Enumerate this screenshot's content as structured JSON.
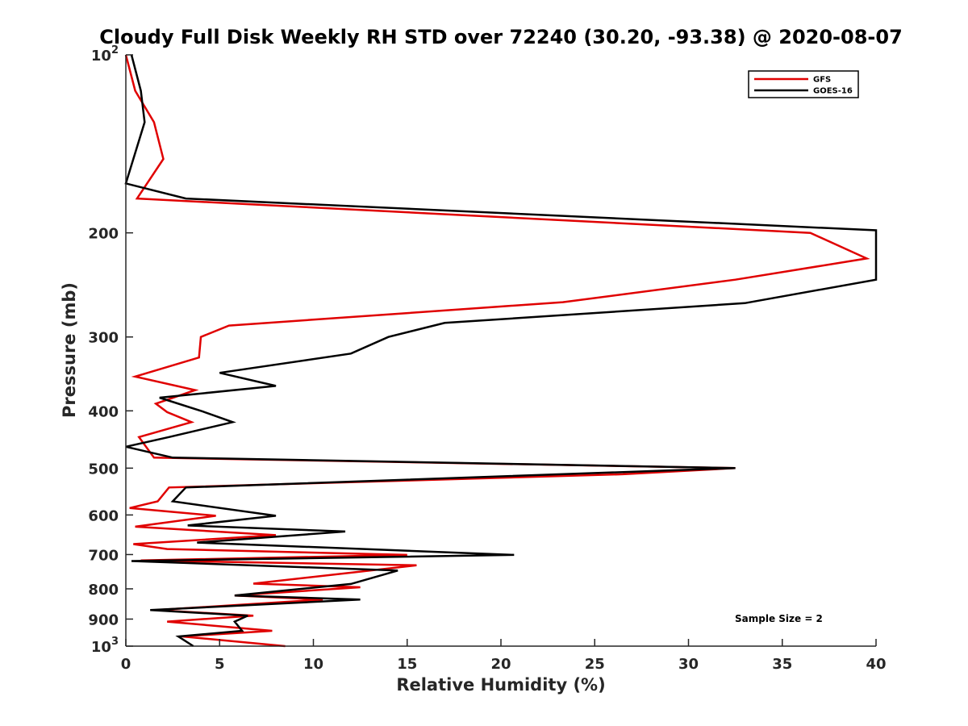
{
  "chart_data": {
    "type": "line",
    "title": "Cloudy Full Disk Weekly RH STD over 72240 (30.20, -93.38) @ 2020-08-07",
    "xlabel": "Relative Humidity (%)",
    "ylabel": "Pressure (mb)",
    "xlim": [
      0,
      40
    ],
    "ylim": [
      100,
      1000
    ],
    "yscale": "log",
    "y_reversed": true,
    "x_ticks": [
      0,
      5,
      10,
      15,
      20,
      25,
      30,
      35,
      40
    ],
    "x_tick_labels": [
      "0",
      "5",
      "10",
      "15",
      "20",
      "25",
      "30",
      "35",
      "40"
    ],
    "y_ticks": [
      100,
      200,
      300,
      400,
      500,
      600,
      700,
      800,
      900,
      1000
    ],
    "y_tick_labels": [
      {
        "base": "10",
        "exp": "2"
      },
      {
        "base": "200",
        "exp": ""
      },
      {
        "base": "300",
        "exp": ""
      },
      {
        "base": "400",
        "exp": ""
      },
      {
        "base": "500",
        "exp": ""
      },
      {
        "base": "600",
        "exp": ""
      },
      {
        "base": "700",
        "exp": ""
      },
      {
        "base": "800",
        "exp": ""
      },
      {
        "base": "900",
        "exp": ""
      },
      {
        "base": "10",
        "exp": "3"
      }
    ],
    "legend_position": "top-right",
    "annotation": "Sample Size = 2",
    "series": [
      {
        "name": "GFS",
        "color": "#e00000",
        "points": [
          [
            0.0,
            100
          ],
          [
            0.5,
            115
          ],
          [
            1.5,
            130
          ],
          [
            2.0,
            150
          ],
          [
            0.6,
            175
          ],
          [
            36.5,
            200
          ],
          [
            39.5,
            221
          ],
          [
            32.5,
            240
          ],
          [
            23.3,
            262
          ],
          [
            5.5,
            287
          ],
          [
            4.0,
            300
          ],
          [
            3.9,
            325
          ],
          [
            0.5,
            350
          ],
          [
            3.7,
            369
          ],
          [
            1.6,
            389
          ],
          [
            2.2,
            402
          ],
          [
            3.5,
            418
          ],
          [
            0.7,
            443
          ],
          [
            1.5,
            480
          ],
          [
            32.5,
            500
          ],
          [
            26.5,
            512
          ],
          [
            2.3,
            539
          ],
          [
            1.7,
            569
          ],
          [
            0.2,
            584
          ],
          [
            4.8,
            602
          ],
          [
            0.5,
            628
          ],
          [
            8.0,
            649
          ],
          [
            0.4,
            672
          ],
          [
            2.2,
            685
          ],
          [
            15.0,
            701
          ],
          [
            0.8,
            716
          ],
          [
            15.5,
            730
          ],
          [
            6.8,
            784
          ],
          [
            12.5,
            795
          ],
          [
            5.8,
            821
          ],
          [
            10.5,
            834
          ],
          [
            1.6,
            869
          ],
          [
            6.8,
            888
          ],
          [
            2.2,
            909
          ],
          [
            7.8,
            942
          ],
          [
            3.0,
            963
          ],
          [
            8.5,
            1000
          ]
        ]
      },
      {
        "name": "GOES-16",
        "color": "#000000",
        "points": [
          [
            0.3,
            100
          ],
          [
            0.8,
            115
          ],
          [
            1.0,
            130
          ],
          [
            0.0,
            165
          ],
          [
            3.2,
            175
          ],
          [
            40.0,
            198
          ],
          [
            40.0,
            240
          ],
          [
            33.0,
            263
          ],
          [
            17.0,
            284
          ],
          [
            14.0,
            300
          ],
          [
            12.0,
            320
          ],
          [
            5.0,
            345
          ],
          [
            8.0,
            363
          ],
          [
            1.8,
            380
          ],
          [
            4.1,
            401
          ],
          [
            5.7,
            418
          ],
          [
            2.3,
            443
          ],
          [
            0.0,
            460
          ],
          [
            2.5,
            480
          ],
          [
            32.5,
            500
          ],
          [
            3.2,
            539
          ],
          [
            2.5,
            569
          ],
          [
            8.0,
            602
          ],
          [
            3.3,
            625
          ],
          [
            11.7,
            640
          ],
          [
            3.8,
            668
          ],
          [
            20.7,
            701
          ],
          [
            0.3,
            718
          ],
          [
            14.5,
            745
          ],
          [
            12.0,
            785
          ],
          [
            5.8,
            821
          ],
          [
            12.5,
            834
          ],
          [
            1.3,
            869
          ],
          [
            6.5,
            888
          ],
          [
            5.8,
            909
          ],
          [
            6.2,
            942
          ],
          [
            2.8,
            963
          ],
          [
            3.6,
            1000
          ]
        ]
      }
    ]
  }
}
